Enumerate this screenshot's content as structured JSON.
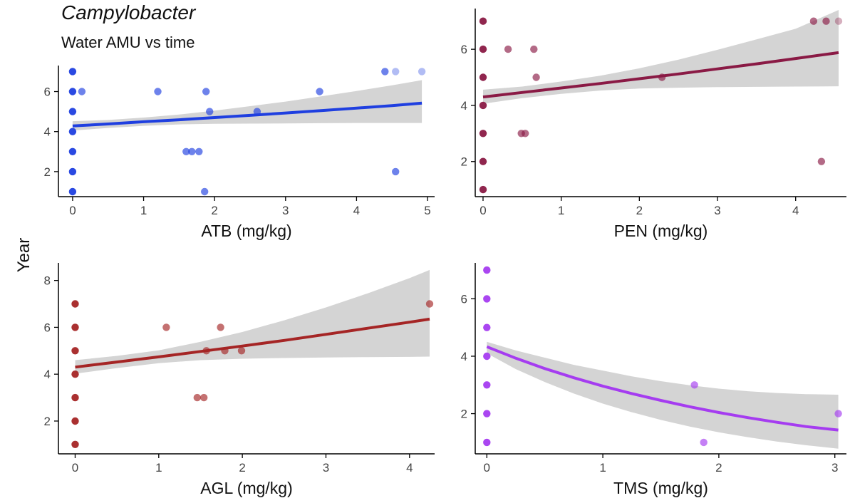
{
  "figure": {
    "title": "Campylobacter",
    "subtitle": "Water AMU vs time",
    "shared_ylabel": "Year"
  },
  "chart_data": [
    {
      "type": "scatter",
      "id": "atb",
      "xlabel": "ATB (mg/kg)",
      "ylabel": "Year",
      "color": "#1f3fe0",
      "xlim": [
        -0.2,
        5.1
      ],
      "ylim": [
        0.75,
        7.3
      ],
      "xticks": [
        0,
        1,
        2,
        3,
        4,
        5
      ],
      "yticks": [
        2,
        4,
        6
      ],
      "points": [
        [
          0,
          1
        ],
        [
          0,
          2
        ],
        [
          0,
          3
        ],
        [
          0,
          4
        ],
        [
          0,
          5
        ],
        [
          0,
          6
        ],
        [
          0,
          7
        ],
        [
          0.13,
          6
        ],
        [
          1.2,
          6
        ],
        [
          1.6,
          3
        ],
        [
          1.68,
          3
        ],
        [
          1.78,
          3
        ],
        [
          1.86,
          1
        ],
        [
          1.88,
          6
        ],
        [
          1.93,
          5
        ],
        [
          2.6,
          5
        ],
        [
          3.48,
          6
        ],
        [
          4.4,
          7
        ],
        [
          4.55,
          7
        ],
        [
          4.55,
          2
        ],
        [
          4.92,
          7
        ]
      ],
      "fit": {
        "x": [
          0,
          0.5,
          1,
          1.5,
          2,
          2.5,
          3,
          3.5,
          4,
          4.5,
          4.92
        ],
        "y": [
          4.28,
          4.38,
          4.49,
          4.59,
          4.7,
          4.81,
          4.93,
          5.05,
          5.17,
          5.3,
          5.42
        ],
        "lower": [
          4.05,
          4.18,
          4.29,
          4.36,
          4.39,
          4.4,
          4.41,
          4.42,
          4.43,
          4.43,
          4.43
        ],
        "upper": [
          4.52,
          4.58,
          4.7,
          4.85,
          5.05,
          5.27,
          5.5,
          5.76,
          6.03,
          6.31,
          6.57
        ]
      }
    },
    {
      "type": "scatter",
      "id": "pen",
      "xlabel": "PEN (mg/kg)",
      "ylabel": "Year",
      "color": "#8a1a45",
      "xlim": [
        -0.1,
        4.65
      ],
      "ylim": [
        0.75,
        7.45
      ],
      "xticks": [
        0,
        1,
        2,
        3,
        4
      ],
      "yticks": [
        2,
        4,
        6
      ],
      "points": [
        [
          0,
          1
        ],
        [
          0,
          2
        ],
        [
          0,
          3
        ],
        [
          0,
          4
        ],
        [
          0,
          5
        ],
        [
          0,
          6
        ],
        [
          0,
          7
        ],
        [
          0.32,
          6
        ],
        [
          0.49,
          3
        ],
        [
          0.54,
          3
        ],
        [
          0.65,
          6
        ],
        [
          0.68,
          5
        ],
        [
          2.29,
          5
        ],
        [
          4.23,
          7
        ],
        [
          4.33,
          2
        ],
        [
          4.39,
          7
        ],
        [
          4.55,
          7
        ]
      ],
      "fit": {
        "x": [
          0,
          0.5,
          1,
          1.5,
          2,
          2.5,
          3,
          3.5,
          4,
          4.55
        ],
        "y": [
          4.3,
          4.46,
          4.62,
          4.78,
          4.95,
          5.12,
          5.3,
          5.48,
          5.67,
          5.88
        ],
        "lower": [
          4.06,
          4.26,
          4.41,
          4.53,
          4.6,
          4.63,
          4.65,
          4.66,
          4.67,
          4.68
        ],
        "upper": [
          4.56,
          4.67,
          4.85,
          5.06,
          5.32,
          5.63,
          5.98,
          6.35,
          6.73,
          7.4
        ]
      }
    },
    {
      "type": "scatter",
      "id": "agl",
      "xlabel": "AGL (mg/kg)",
      "ylabel": "Year",
      "color": "#a52525",
      "xlim": [
        -0.2,
        4.3
      ],
      "ylim": [
        0.6,
        8.75
      ],
      "xticks": [
        0,
        1,
        2,
        3,
        4
      ],
      "yticks": [
        2,
        4,
        6,
        8
      ],
      "points": [
        [
          0,
          1
        ],
        [
          0,
          2
        ],
        [
          0,
          3
        ],
        [
          0,
          4
        ],
        [
          0,
          5
        ],
        [
          0,
          6
        ],
        [
          0,
          7
        ],
        [
          1.09,
          6
        ],
        [
          1.46,
          3
        ],
        [
          1.54,
          3
        ],
        [
          1.57,
          5
        ],
        [
          1.74,
          6
        ],
        [
          1.79,
          5
        ],
        [
          1.99,
          5
        ],
        [
          4.24,
          7
        ]
      ],
      "fit": {
        "x": [
          0,
          0.5,
          1,
          1.5,
          2,
          2.5,
          3,
          3.5,
          4,
          4.24
        ],
        "y": [
          4.3,
          4.52,
          4.74,
          4.97,
          5.2,
          5.44,
          5.7,
          5.96,
          6.22,
          6.35
        ],
        "lower": [
          4.02,
          4.26,
          4.47,
          4.6,
          4.66,
          4.69,
          4.71,
          4.73,
          4.74,
          4.75
        ],
        "upper": [
          4.6,
          4.78,
          5.02,
          5.38,
          5.8,
          6.3,
          6.85,
          7.45,
          8.1,
          8.45
        ]
      }
    },
    {
      "type": "scatter",
      "id": "tms",
      "xlabel": "TMS (mg/kg)",
      "ylabel": "Year",
      "color": "#a53cf0",
      "xlim": [
        -0.1,
        3.1
      ],
      "ylim": [
        0.6,
        7.25
      ],
      "xticks": [
        0,
        1,
        2,
        3
      ],
      "yticks": [
        2,
        4,
        6
      ],
      "points": [
        [
          0,
          1
        ],
        [
          0,
          2
        ],
        [
          0,
          3
        ],
        [
          0,
          4
        ],
        [
          0,
          5
        ],
        [
          0,
          6
        ],
        [
          0,
          7
        ],
        [
          1.79,
          3
        ],
        [
          1.87,
          1
        ],
        [
          3.03,
          2
        ]
      ],
      "fit": {
        "x": [
          0,
          0.25,
          0.5,
          0.75,
          1,
          1.25,
          1.5,
          1.75,
          2,
          2.25,
          2.5,
          2.75,
          3.03
        ],
        "y": [
          4.33,
          3.93,
          3.57,
          3.25,
          2.96,
          2.7,
          2.46,
          2.24,
          2.04,
          1.86,
          1.7,
          1.55,
          1.43
        ],
        "lower": [
          4.1,
          3.55,
          3.1,
          2.7,
          2.35,
          2.05,
          1.78,
          1.55,
          1.35,
          1.18,
          1.03,
          0.9,
          0.78
        ],
        "upper": [
          4.5,
          4.2,
          3.95,
          3.7,
          3.5,
          3.3,
          3.13,
          2.99,
          2.87,
          2.78,
          2.72,
          2.68,
          2.66
        ]
      }
    }
  ]
}
